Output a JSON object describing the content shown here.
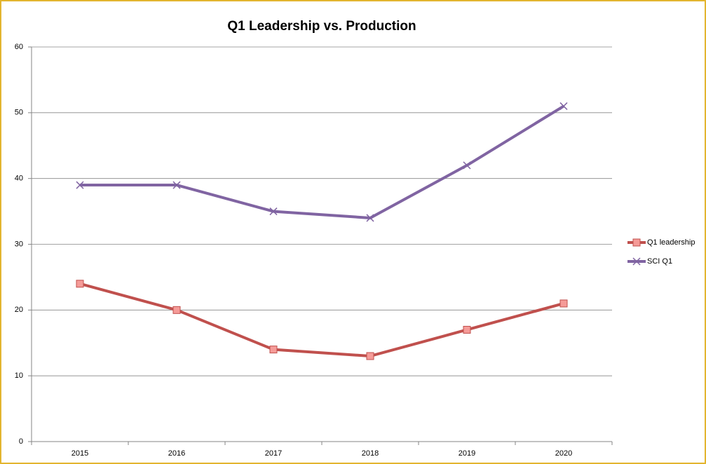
{
  "chart_data": {
    "type": "line",
    "title": "Q1 Leadership vs. Production",
    "categories": [
      "2015",
      "2016",
      "2017",
      "2018",
      "2019",
      "2020"
    ],
    "series": [
      {
        "name": "Q1 leadership",
        "color": "#c0504d",
        "marker": "square",
        "values": [
          24,
          20,
          14,
          13,
          17,
          21
        ]
      },
      {
        "name": "SCI Q1",
        "color": "#8064a2",
        "marker": "x",
        "values": [
          39,
          39,
          35,
          34,
          42,
          51
        ]
      }
    ],
    "ylim": [
      0,
      60
    ],
    "yticks": [
      0,
      10,
      20,
      30,
      40,
      50,
      60
    ],
    "grid": true,
    "legend": "right"
  }
}
